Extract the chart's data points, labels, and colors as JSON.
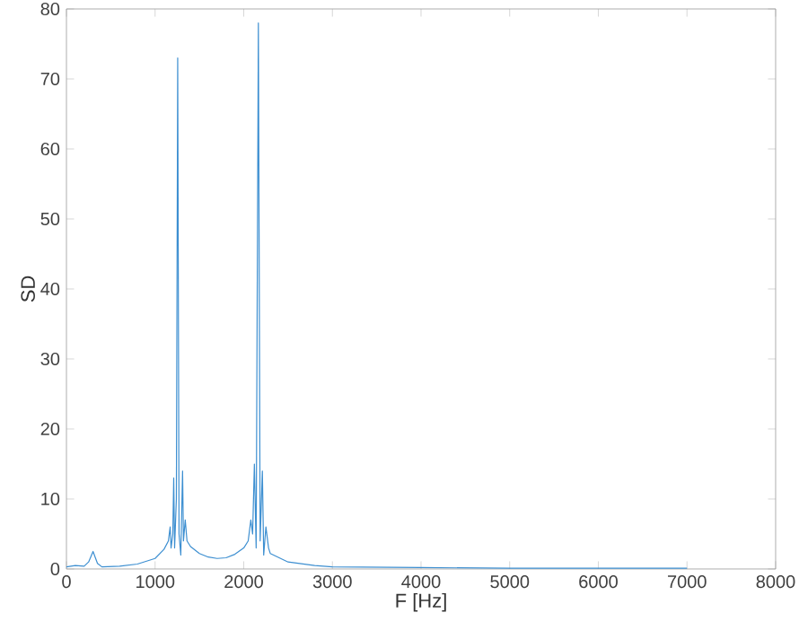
{
  "chart_data": {
    "type": "line",
    "xlabel": "F [Hz]",
    "ylabel": "SD",
    "xlim": [
      0,
      8000
    ],
    "ylim": [
      0,
      80
    ],
    "xticks": [
      0,
      1000,
      2000,
      3000,
      4000,
      5000,
      6000,
      7000,
      8000
    ],
    "yticks": [
      0,
      10,
      20,
      30,
      40,
      50,
      60,
      70,
      80
    ],
    "grid": false,
    "marker": "none",
    "line_style": "solid",
    "series": [
      {
        "color": "#3d8fd1",
        "x": [
          0,
          100,
          200,
          250,
          300,
          350,
          400,
          600,
          800,
          1000,
          1100,
          1150,
          1170,
          1180,
          1200,
          1210,
          1220,
          1240,
          1255,
          1270,
          1290,
          1310,
          1320,
          1340,
          1360,
          1400,
          1500,
          1600,
          1700,
          1800,
          1900,
          2000,
          2050,
          2080,
          2100,
          2120,
          2140,
          2165,
          2185,
          2210,
          2225,
          2250,
          2280,
          2300,
          2500,
          2800,
          3000,
          4000,
          5000,
          6000,
          7000
        ],
        "values": [
          0.3,
          0.5,
          0.4,
          1.0,
          2.5,
          0.8,
          0.3,
          0.4,
          0.7,
          1.5,
          2.8,
          4,
          6,
          3,
          5,
          13,
          3,
          10,
          73,
          5,
          2,
          14,
          4,
          7,
          4,
          3.2,
          2.2,
          1.7,
          1.5,
          1.6,
          2.1,
          3,
          4,
          7,
          5,
          15,
          3,
          78,
          4,
          14,
          2,
          6,
          3,
          2.2,
          1.0,
          0.5,
          0.3,
          0.2,
          0.1,
          0.1,
          0.1
        ]
      }
    ]
  }
}
